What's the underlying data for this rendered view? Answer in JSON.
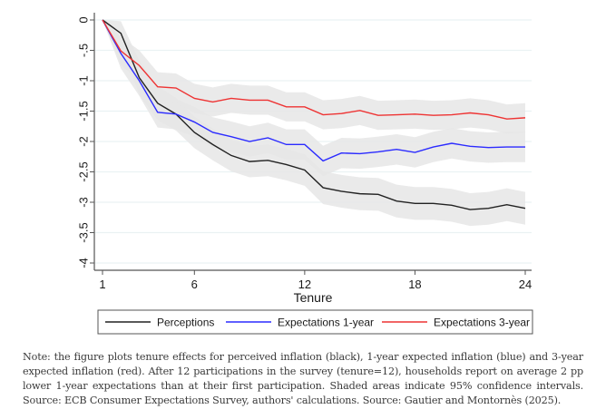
{
  "chart_data": {
    "type": "line",
    "title": "",
    "xlabel": "Tenure",
    "ylabel": "",
    "xlim": [
      1,
      24
    ],
    "ylim": [
      -4,
      0
    ],
    "x_ticks": [
      1,
      6,
      12,
      18,
      24
    ],
    "x_tick_labels": [
      "1",
      "6",
      "12",
      "18",
      "24"
    ],
    "y_ticks": [
      0,
      -0.5,
      -1,
      -1.5,
      -2,
      -2.5,
      -3,
      -3.5,
      -4
    ],
    "y_tick_labels": [
      "0",
      "-.5",
      "-1",
      "-1.5",
      "-2",
      "-2.5",
      "-3",
      "-3.5",
      "-4"
    ],
    "grid": true,
    "legend_position": "bottom",
    "confidence_band": "95% CI (shaded grey)",
    "x": [
      1,
      2,
      3,
      4,
      5,
      6,
      7,
      8,
      9,
      10,
      11,
      12,
      13,
      14,
      15,
      16,
      17,
      18,
      19,
      20,
      21,
      22,
      23,
      24
    ],
    "series": [
      {
        "name": "Perceptions",
        "color": "#222222",
        "values": [
          0,
          -0.22,
          -0.95,
          -1.37,
          -1.55,
          -1.85,
          -2.05,
          -2.23,
          -2.33,
          -2.31,
          -2.38,
          -2.47,
          -2.76,
          -2.82,
          -2.86,
          -2.87,
          -2.98,
          -3.02,
          -3.02,
          -3.05,
          -3.12,
          -3.1,
          -3.04,
          -3.1
        ],
        "ci_halfwidth": [
          0,
          0.2,
          0.28,
          0.28,
          0.27,
          0.26,
          0.26,
          0.26,
          0.26,
          0.26,
          0.26,
          0.26,
          0.27,
          0.27,
          0.27,
          0.27,
          0.27,
          0.27,
          0.27,
          0.27,
          0.27,
          0.27,
          0.27,
          0.27
        ]
      },
      {
        "name": "Expectations 1-year",
        "color": "#2b2bff",
        "values": [
          0,
          -0.55,
          -1.0,
          -1.52,
          -1.55,
          -1.68,
          -1.85,
          -1.92,
          -2.0,
          -1.94,
          -2.05,
          -2.05,
          -2.32,
          -2.19,
          -2.2,
          -2.17,
          -2.13,
          -2.18,
          -2.09,
          -2.03,
          -2.08,
          -2.1,
          -2.09,
          -2.09
        ],
        "ci_halfwidth": [
          0,
          0.25,
          0.25,
          0.25,
          0.25,
          0.25,
          0.25,
          0.25,
          0.25,
          0.25,
          0.25,
          0.25,
          0.25,
          0.25,
          0.25,
          0.25,
          0.25,
          0.25,
          0.25,
          0.25,
          0.25,
          0.25,
          0.25,
          0.25
        ]
      },
      {
        "name": "Expectations 3-year",
        "color": "#ee3333",
        "values": [
          0,
          -0.51,
          -0.75,
          -1.1,
          -1.12,
          -1.29,
          -1.35,
          -1.29,
          -1.32,
          -1.32,
          -1.43,
          -1.43,
          -1.56,
          -1.54,
          -1.49,
          -1.57,
          -1.56,
          -1.55,
          -1.57,
          -1.56,
          -1.53,
          -1.56,
          -1.63,
          -1.61
        ],
        "ci_halfwidth": [
          0,
          0.23,
          0.25,
          0.24,
          0.24,
          0.24,
          0.24,
          0.24,
          0.24,
          0.24,
          0.24,
          0.24,
          0.24,
          0.24,
          0.24,
          0.24,
          0.24,
          0.24,
          0.24,
          0.24,
          0.24,
          0.24,
          0.24,
          0.24
        ]
      }
    ],
    "legend": [
      "Perceptions",
      "Expectations 1-year",
      "Expectations 3-year"
    ],
    "band_color": "#e6e6e6",
    "grid_color": "#eaf2f3"
  },
  "note": "Note: the figure plots tenure effects for perceived inflation (black), 1-year expected inflation (blue) and 3-year expected inflation (red). After 12 participations in the survey (tenure=12), households report on average 2 pp lower 1-year expectations than at their first participation. Shaded areas indicate 95% confidence intervals. Source: ECB Consumer Expectations Survey, authors' calculations. Source: Gautier and Montornès (2025)."
}
